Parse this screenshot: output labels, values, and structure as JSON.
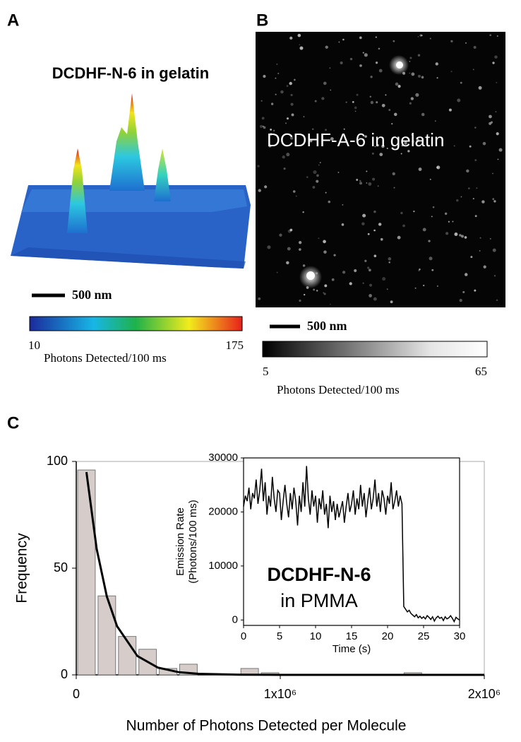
{
  "panel_a": {
    "label": "A",
    "title": "DCDHF-N-6 in gelatin",
    "scale_bar": "500 nm",
    "colorbar": {
      "min": 10,
      "max": 175,
      "label": "Photons Detected/100 ms"
    }
  },
  "panel_b": {
    "label": "B",
    "title": "DCDHF-A-6 in gelatin",
    "scale_bar": "500 nm",
    "colorbar": {
      "min": 5,
      "max": 65,
      "label": "Photons Detected/100 ms"
    }
  },
  "chart_data": [
    {
      "type": "histogram",
      "panel_label": "C",
      "xlabel": "Number of Photons Detected per Molecule",
      "ylabel": "Frequency",
      "bins": [
        0,
        100000,
        200000,
        300000,
        400000,
        500000,
        600000,
        700000,
        800000,
        900000,
        1000000,
        1100000,
        1200000,
        1300000,
        1400000,
        1500000,
        1600000,
        1700000,
        1800000,
        1900000,
        2000000
      ],
      "values": [
        96,
        37,
        18,
        12,
        3,
        5,
        0,
        0,
        3,
        1,
        0,
        0,
        0,
        0,
        0,
        0,
        1,
        0,
        0,
        0
      ],
      "color": "#d6cdcb",
      "fit": {
        "x": [
          50000,
          100000,
          150000,
          200000,
          300000,
          400000,
          500000,
          600000,
          800000,
          1000000,
          1500000,
          2000000
        ],
        "values": [
          95,
          59.1,
          36.7,
          22.8,
          8.8,
          3.4,
          1.3,
          0.5,
          0.08,
          0.01,
          0,
          0
        ],
        "color": "#000000"
      },
      "xlim": [
        0,
        2000000
      ],
      "ylim": [
        0,
        100
      ],
      "xticks": [
        0,
        {
          "value": 1000000,
          "label": "1x10⁶"
        },
        {
          "value": 2000000,
          "label": "2x10⁶"
        }
      ],
      "yticks": [
        0,
        50,
        100
      ]
    },
    {
      "type": "line",
      "xlabel": "Time (s)",
      "ylabel": [
        "Emission Rate",
        "(Photons/100 ms)"
      ],
      "annotation": [
        "DCDHF-N-6",
        "in PMMA"
      ],
      "x": [
        0,
        0.25,
        0.5,
        0.75,
        1,
        1.25,
        1.5,
        1.75,
        2,
        2.25,
        2.5,
        2.75,
        3,
        3.25,
        3.5,
        3.75,
        4,
        4.25,
        4.5,
        4.75,
        5,
        5.25,
        5.5,
        5.75,
        6,
        6.25,
        6.5,
        6.75,
        7,
        7.25,
        7.5,
        7.75,
        8,
        8.25,
        8.5,
        8.75,
        9,
        9.25,
        9.5,
        9.75,
        10,
        10.25,
        10.5,
        10.75,
        11,
        11.25,
        11.5,
        11.75,
        12,
        12.25,
        12.5,
        12.75,
        13,
        13.25,
        13.5,
        13.75,
        14,
        14.25,
        14.5,
        14.75,
        15,
        15.25,
        15.5,
        15.75,
        16,
        16.25,
        16.5,
        16.75,
        17,
        17.25,
        17.5,
        17.75,
        18,
        18.25,
        18.5,
        18.75,
        19,
        19.25,
        19.5,
        19.75,
        20,
        20.25,
        20.5,
        20.75,
        21,
        21.25,
        21.5,
        21.75,
        22,
        22.25,
        22.5,
        22.75,
        23,
        23.25,
        23.5,
        23.75,
        24,
        24.25,
        24.5,
        24.75,
        25,
        25.25,
        25.5,
        25.75,
        26,
        26.25,
        26.5,
        26.75,
        27,
        27.25,
        27.5,
        27.75,
        28,
        28.25,
        28.5,
        28.75,
        29,
        29.25,
        29.5,
        29.75,
        30
      ],
      "series": [
        {
          "name": null,
          "color": "#000000",
          "values": [
            21000,
            23000,
            22000,
            24500,
            20500,
            23500,
            22500,
            26000,
            21500,
            24000,
            28000,
            22000,
            25500,
            19500,
            23000,
            21000,
            26500,
            22500,
            20000,
            24000,
            23500,
            18500,
            22000,
            25000,
            21500,
            19000,
            23500,
            20500,
            24500,
            22000,
            17500,
            23000,
            20000,
            25500,
            21000,
            28500,
            22500,
            19500,
            24000,
            21000,
            23000,
            18000,
            22500,
            20500,
            24000,
            19500,
            21500,
            17000,
            23000,
            20000,
            22000,
            18500,
            21500,
            19000,
            20500,
            22000,
            18000,
            21000,
            23500,
            20000,
            21500,
            24000,
            19500,
            22500,
            20500,
            25000,
            21000,
            23500,
            19000,
            22000,
            24500,
            20500,
            22500,
            26000,
            21000,
            23500,
            20000,
            24000,
            22500,
            19500,
            23000,
            21500,
            25500,
            20500,
            22000,
            24000,
            21000,
            23000,
            21500,
            2500,
            2000,
            1500,
            1800,
            1200,
            900,
            600,
            1000,
            400,
            700,
            300,
            600,
            200,
            800,
            500,
            100,
            600,
            -200,
            400,
            700,
            300,
            500,
            -100,
            600,
            200,
            400,
            800,
            300,
            -300,
            500,
            200,
            0
          ]
        }
      ],
      "xlim": [
        0,
        30
      ],
      "ylim": [
        -1000,
        30000
      ],
      "xticks": [
        0,
        5,
        10,
        15,
        20,
        25,
        30
      ],
      "yticks": [
        0,
        10000,
        20000,
        30000
      ]
    }
  ]
}
